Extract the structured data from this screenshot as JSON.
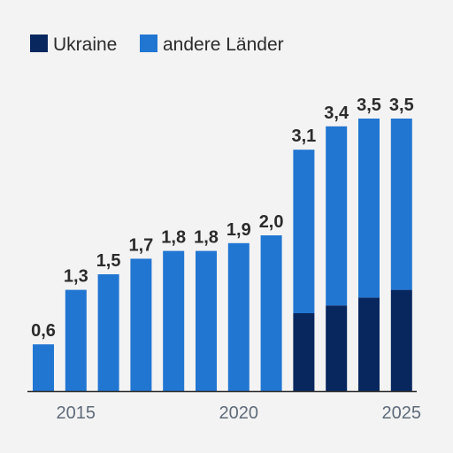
{
  "chart_data": {
    "type": "bar",
    "stacked": true,
    "categories": [
      "2014",
      "2015",
      "2016",
      "2017",
      "2018",
      "2019",
      "2020",
      "2021",
      "2022",
      "2023",
      "2024",
      "2025"
    ],
    "series": [
      {
        "name": "Ukraine",
        "values": [
          0,
          0,
          0,
          0,
          0,
          0,
          0,
          0,
          1.0,
          1.1,
          1.2,
          1.3
        ]
      },
      {
        "name": "andere Länder",
        "values": [
          0.6,
          1.3,
          1.5,
          1.7,
          1.8,
          1.8,
          1.9,
          2.0,
          2.1,
          2.3,
          2.3,
          2.2
        ]
      }
    ],
    "totals": [
      0.6,
      1.3,
      1.5,
      1.7,
      1.8,
      1.8,
      1.9,
      2.0,
      3.1,
      3.4,
      3.5,
      3.5
    ],
    "total_labels": [
      "0,6",
      "1,3",
      "1,5",
      "1,7",
      "1,8",
      "1,8",
      "1,9",
      "2,0",
      "3,1",
      "3,4",
      "3,5",
      "3,5"
    ],
    "x_tick_labels": [
      {
        "category": "2015",
        "label": "2015"
      },
      {
        "category": "2020",
        "label": "2020"
      },
      {
        "category": "2025",
        "label": "2025"
      }
    ],
    "ylim": [
      0,
      3.5
    ],
    "grid": false,
    "legend_position": "top-left",
    "title": "",
    "xlabel": "",
    "ylabel": ""
  },
  "colors": {
    "background": "#f3f3f3",
    "ukraine": "#08275f",
    "andere_laender": "#2176d2",
    "axis": "#2b2b2b",
    "value_text": "#2b2b2b",
    "tick_text": "#5f6b7a"
  }
}
